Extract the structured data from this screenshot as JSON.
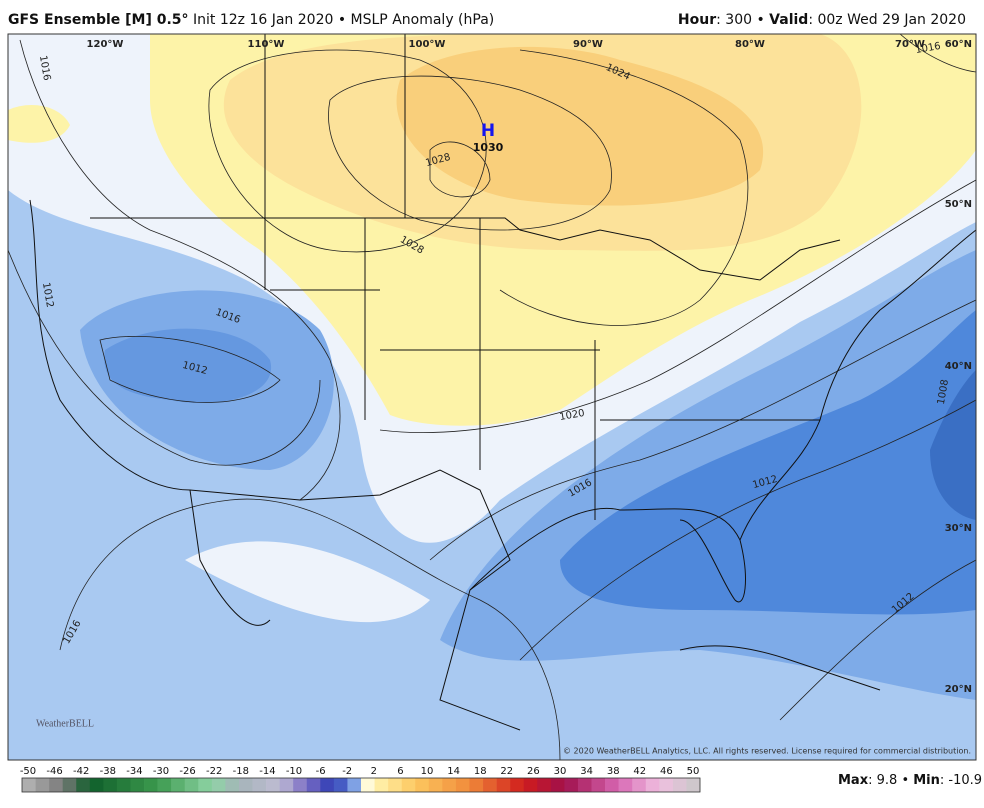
{
  "header": {
    "title": "GFS Ensemble [M] 0.5°",
    "subtitle": "Init 12z 16 Jan 2020 • MSLP Anomaly (hPa)",
    "hour_label": "Hour",
    "hour_text": ": 300 • ",
    "valid_label": "Valid",
    "valid_text": ": 00z Wed 29 Jan 2020"
  },
  "map": {
    "longitudes": [
      "120°W",
      "110°W",
      "100°W",
      "90°W",
      "80°W",
      "70°W"
    ],
    "latitudes": [
      "60°N",
      "50°N",
      "40°N",
      "30°N",
      "20°N"
    ],
    "contour_labels": [
      "1016",
      "1016",
      "1024",
      "1028",
      "1028",
      "1016",
      "1012",
      "1012",
      "1020",
      "1016",
      "1012",
      "1008",
      "1012",
      "1016"
    ],
    "pressure_center": {
      "letter": "H",
      "value": "1030"
    },
    "logo": "WeatherBELL",
    "copyright": "© 2020 WeatherBELL Analytics, LLC. All rights reserved. License required for commercial distribution."
  },
  "colorbar": {
    "ticks": [
      -50,
      -46,
      -42,
      -38,
      -34,
      -30,
      -26,
      -22,
      -18,
      -14,
      -10,
      -6,
      -2,
      2,
      6,
      10,
      14,
      18,
      22,
      26,
      30,
      34,
      38,
      42,
      46,
      50
    ]
  },
  "stats": {
    "max_label": "Max",
    "max_sep": ": ",
    "max": 9.8,
    "mid_sep": " • ",
    "min_label": "Min",
    "min_sep": ": ",
    "min": -10.9
  }
}
